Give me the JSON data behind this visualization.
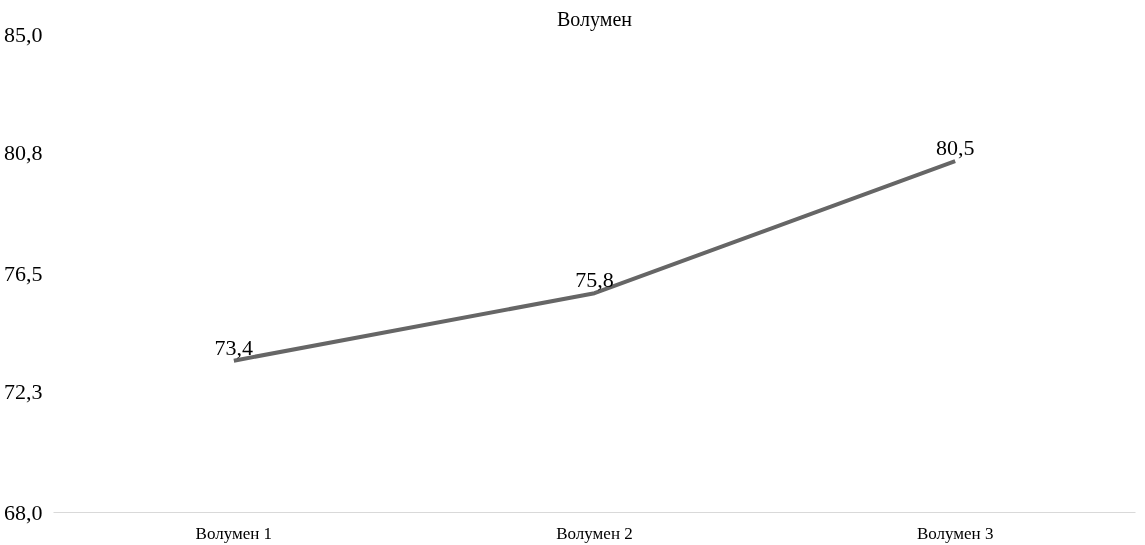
{
  "chart_data": {
    "type": "line",
    "title": "Волумен",
    "categories": [
      "Волумен 1",
      "Волумен 2",
      "Волумен 3"
    ],
    "series": [
      {
        "color": "#666666",
        "values": [
          73.4,
          75.8,
          80.5
        ],
        "value_labels": [
          "73,4",
          "75,8",
          "80,5"
        ]
      }
    ],
    "ylim": [
      68.0,
      85.0
    ],
    "yticks": [
      {
        "value": 68.0,
        "label": "68,0"
      },
      {
        "value": 72.3,
        "label": "72,3"
      },
      {
        "value": 76.5,
        "label": "76,5"
      },
      {
        "value": 80.8,
        "label": "80,8"
      },
      {
        "value": 85.0,
        "label": "85,0"
      }
    ],
    "marker": "none",
    "line_style": "solid"
  }
}
